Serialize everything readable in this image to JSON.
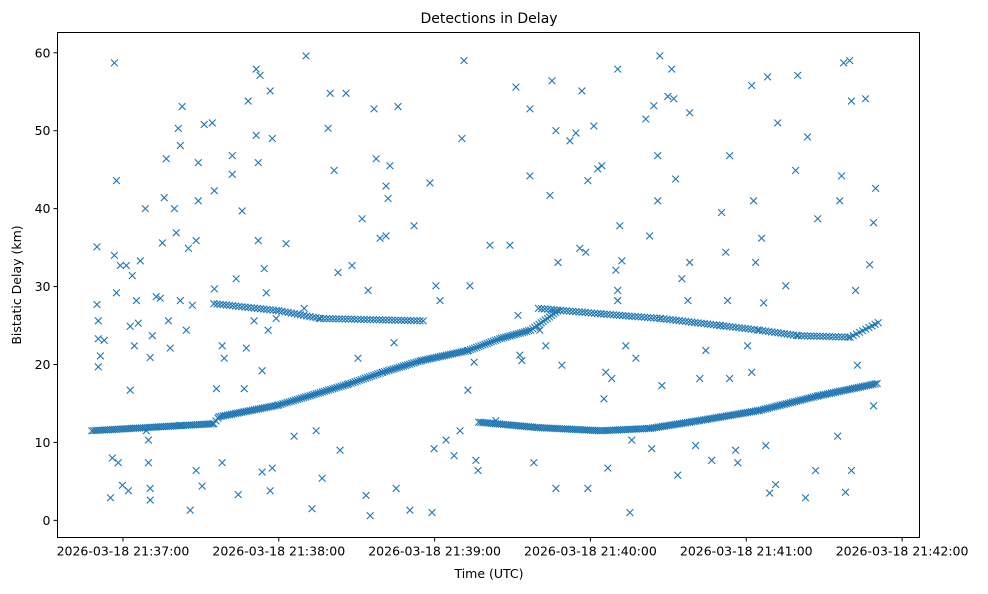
{
  "chart_data": {
    "type": "scatter",
    "title": "Detections in Delay",
    "xlabel": "Time (UTC)",
    "ylabel": "Bistatic Delay (km)",
    "x_units": "seconds after 2026-03-18 21:36:00 UTC",
    "xlim": [
      34.8,
      366.7
    ],
    "ylim": [
      -2.2,
      62.6
    ],
    "x_ticks": [
      {
        "value": 60,
        "label": "2026-03-18 21:37:00"
      },
      {
        "value": 120,
        "label": "2026-03-18 21:38:00"
      },
      {
        "value": 180,
        "label": "2026-03-18 21:39:00"
      },
      {
        "value": 240,
        "label": "2026-03-18 21:40:00"
      },
      {
        "value": 300,
        "label": "2026-03-18 21:41:00"
      },
      {
        "value": 360,
        "label": "2026-03-18 21:42:00"
      }
    ],
    "y_ticks": [
      {
        "value": 0,
        "label": "0"
      },
      {
        "value": 10,
        "label": "10"
      },
      {
        "value": 20,
        "label": "20"
      },
      {
        "value": 30,
        "label": "30"
      },
      {
        "value": 40,
        "label": "40"
      },
      {
        "value": 50,
        "label": "50"
      },
      {
        "value": 60,
        "label": "60"
      }
    ],
    "grid": false,
    "marker": "x",
    "color": "#1f77b4",
    "tracks": [
      {
        "name": "track-1",
        "sample_interval_s": 0.8,
        "knots": [
          [
            48,
            11.5
          ],
          [
            95,
            12.4
          ],
          [
            97,
            13.3
          ],
          [
            120,
            14.8
          ],
          [
            147,
            17.5
          ],
          [
            160,
            19.0
          ],
          [
            175,
            20.5
          ],
          [
            193,
            21.8
          ],
          [
            205,
            23.3
          ],
          [
            217,
            24.4
          ],
          [
            228,
            27.0
          ]
        ]
      },
      {
        "name": "track-2a",
        "sample_interval_s": 1.2,
        "knots": [
          [
            95,
            27.8
          ],
          [
            120,
            26.9
          ],
          [
            136,
            25.9
          ],
          [
            176,
            25.6
          ]
        ]
      },
      {
        "name": "track-2b",
        "sample_interval_s": 1.2,
        "knots": [
          [
            220,
            27.2
          ],
          [
            244,
            26.5
          ],
          [
            267,
            25.9
          ],
          [
            290,
            25.0
          ],
          [
            305,
            24.4
          ],
          [
            320,
            23.7
          ],
          [
            340,
            23.5
          ],
          [
            351,
            25.4
          ]
        ]
      },
      {
        "name": "track-3",
        "sample_interval_s": 0.8,
        "knots": [
          [
            197,
            12.6
          ],
          [
            220,
            11.9
          ],
          [
            244,
            11.5
          ],
          [
            263,
            11.8
          ],
          [
            282,
            12.8
          ],
          [
            305,
            14.1
          ],
          [
            328,
            16.0
          ],
          [
            351,
            17.6
          ]
        ]
      }
    ],
    "points": [
      [
        50,
        35.1
      ],
      [
        50,
        27.7
      ],
      [
        50.5,
        23.3
      ],
      [
        50.5,
        25.6
      ],
      [
        50.5,
        19.7
      ],
      [
        51.3,
        21.1
      ],
      [
        52.8,
        23.1
      ],
      [
        55.2,
        2.9
      ],
      [
        55.9,
        8.0
      ],
      [
        56.7,
        58.7
      ],
      [
        57.5,
        43.6
      ],
      [
        56.7,
        34.0
      ],
      [
        57.5,
        29.2
      ],
      [
        58.2,
        7.4
      ],
      [
        59,
        32.7
      ],
      [
        59.8,
        4.5
      ],
      [
        61.3,
        32.7
      ],
      [
        62.1,
        3.8
      ],
      [
        62.8,
        16.7
      ],
      [
        62.8,
        24.9
      ],
      [
        63.6,
        31.4
      ],
      [
        64.4,
        22.4
      ],
      [
        65.2,
        28.2
      ],
      [
        65.9,
        25.3
      ],
      [
        66.7,
        33.3
      ],
      [
        68.6,
        40.0
      ],
      [
        69,
        11.5
      ],
      [
        69.8,
        7.4
      ],
      [
        70.5,
        2.6
      ],
      [
        70.5,
        4.1
      ],
      [
        69.8,
        10.3
      ],
      [
        70.5,
        20.9
      ],
      [
        71.3,
        23.7
      ],
      [
        72.8,
        28.7
      ],
      [
        74.4,
        28.5
      ],
      [
        75.2,
        35.6
      ],
      [
        75.9,
        41.4
      ],
      [
        76.7,
        46.4
      ],
      [
        77.5,
        25.6
      ],
      [
        78.2,
        22.1
      ],
      [
        79.8,
        40.0
      ],
      [
        80.5,
        36.9
      ],
      [
        81.3,
        50.3
      ],
      [
        82.1,
        48.1
      ],
      [
        82.8,
        53.1
      ],
      [
        82.1,
        28.2
      ],
      [
        82.1,
        12.2
      ],
      [
        84.4,
        24.4
      ],
      [
        85.2,
        34.9
      ],
      [
        85.9,
        1.3
      ],
      [
        86.7,
        27.6
      ],
      [
        88.2,
        35.9
      ],
      [
        88.2,
        6.4
      ],
      [
        89,
        45.9
      ],
      [
        89,
        41.0
      ],
      [
        90.5,
        4.4
      ],
      [
        91.3,
        50.8
      ],
      [
        94.4,
        51.0
      ],
      [
        95.2,
        42.3
      ],
      [
        96,
        16.9
      ],
      [
        95.2,
        29.7
      ],
      [
        98.2,
        7.4
      ],
      [
        98.2,
        22.4
      ],
      [
        99,
        20.8
      ],
      [
        102.1,
        46.8
      ],
      [
        102.1,
        44.4
      ],
      [
        103.6,
        31.0
      ],
      [
        104.4,
        3.3
      ],
      [
        105.9,
        39.7
      ],
      [
        106.7,
        16.9
      ],
      [
        107.5,
        22.1
      ],
      [
        108.2,
        53.8
      ],
      [
        110.5,
        25.6
      ],
      [
        111.3,
        57.9
      ],
      [
        111.3,
        49.4
      ],
      [
        112.1,
        45.9
      ],
      [
        112.1,
        35.9
      ],
      [
        112.8,
        57.1
      ],
      [
        113.6,
        19.2
      ],
      [
        113.6,
        6.2
      ],
      [
        114.4,
        32.3
      ],
      [
        115.2,
        29.2
      ],
      [
        115.9,
        24.4
      ],
      [
        116.7,
        55.1
      ],
      [
        117.5,
        49.0
      ],
      [
        116.7,
        3.8
      ],
      [
        117.5,
        6.7
      ],
      [
        119,
        25.9
      ],
      [
        122.8,
        35.5
      ],
      [
        125.9,
        10.8
      ],
      [
        129.8,
        27.2
      ],
      [
        130.5,
        59.6
      ],
      [
        132.8,
        1.5
      ],
      [
        134.4,
        11.5
      ],
      [
        136.7,
        5.4
      ],
      [
        139,
        50.3
      ],
      [
        139.8,
        54.8
      ],
      [
        141.3,
        44.9
      ],
      [
        142.8,
        31.8
      ],
      [
        143.6,
        9.0
      ],
      [
        145.9,
        54.8
      ],
      [
        148.2,
        32.7
      ],
      [
        150.5,
        20.8
      ],
      [
        152.1,
        38.7
      ],
      [
        153.6,
        3.2
      ],
      [
        154.4,
        29.5
      ],
      [
        155.2,
        0.6
      ],
      [
        156.7,
        52.8
      ],
      [
        157.5,
        46.4
      ],
      [
        159,
        36.2
      ],
      [
        161.3,
        42.9
      ],
      [
        161.3,
        36.5
      ],
      [
        162.1,
        41.3
      ],
      [
        162.8,
        45.5
      ],
      [
        164.4,
        22.8
      ],
      [
        165.2,
        4.1
      ],
      [
        165.9,
        53.1
      ],
      [
        170.5,
        1.3
      ],
      [
        172.1,
        37.8
      ],
      [
        178.2,
        43.3
      ],
      [
        179,
        1.0
      ],
      [
        179.8,
        9.2
      ],
      [
        180.5,
        30.1
      ],
      [
        182.1,
        28.2
      ],
      [
        184.4,
        10.3
      ],
      [
        187.5,
        8.3
      ],
      [
        189.8,
        11.5
      ],
      [
        190.5,
        49.0
      ],
      [
        191.3,
        59.0
      ],
      [
        192.8,
        16.7
      ],
      [
        193.6,
        30.1
      ],
      [
        195.2,
        20.3
      ],
      [
        195.9,
        7.7
      ],
      [
        196.7,
        6.4
      ],
      [
        201.3,
        35.3
      ],
      [
        203.6,
        12.8
      ],
      [
        209,
        35.3
      ],
      [
        211.3,
        55.6
      ],
      [
        212.1,
        26.3
      ],
      [
        212.8,
        21.2
      ],
      [
        213.6,
        20.5
      ],
      [
        216.7,
        44.2
      ],
      [
        216.7,
        52.8
      ],
      [
        218.2,
        7.4
      ],
      [
        220.5,
        24.4
      ],
      [
        222.8,
        22.4
      ],
      [
        224.4,
        41.7
      ],
      [
        225.2,
        56.4
      ],
      [
        226.7,
        50.0
      ],
      [
        226.7,
        4.1
      ],
      [
        227.5,
        33.1
      ],
      [
        229,
        19.9
      ],
      [
        232.1,
        48.7
      ],
      [
        234.4,
        49.7
      ],
      [
        235.9,
        34.9
      ],
      [
        236.7,
        55.1
      ],
      [
        238.2,
        34.4
      ],
      [
        239,
        43.6
      ],
      [
        239,
        4.1
      ],
      [
        241.3,
        50.6
      ],
      [
        242.8,
        45.1
      ],
      [
        244.4,
        45.5
      ],
      [
        245.2,
        15.6
      ],
      [
        245.9,
        19.0
      ],
      [
        246.7,
        6.7
      ],
      [
        248.2,
        18.2
      ],
      [
        249.8,
        32.1
      ],
      [
        250.5,
        57.9
      ],
      [
        250.5,
        29.5
      ],
      [
        250.5,
        28.2
      ],
      [
        251.3,
        37.8
      ],
      [
        252.1,
        33.3
      ],
      [
        253.6,
        22.4
      ],
      [
        255.2,
        1.0
      ],
      [
        255.9,
        10.3
      ],
      [
        257.5,
        20.8
      ],
      [
        261.3,
        51.5
      ],
      [
        262.8,
        36.5
      ],
      [
        263.6,
        9.2
      ],
      [
        264.4,
        53.2
      ],
      [
        265.9,
        46.8
      ],
      [
        265.9,
        41.0
      ],
      [
        266.7,
        59.6
      ],
      [
        267.5,
        17.3
      ],
      [
        269.8,
        54.4
      ],
      [
        271.3,
        57.9
      ],
      [
        272.1,
        54.1
      ],
      [
        272.8,
        43.8
      ],
      [
        273.6,
        5.8
      ],
      [
        275.2,
        31.0
      ],
      [
        277.5,
        28.2
      ],
      [
        278.2,
        33.1
      ],
      [
        278.2,
        52.3
      ],
      [
        280.5,
        9.6
      ],
      [
        282.1,
        18.2
      ],
      [
        284.4,
        21.8
      ],
      [
        286.7,
        7.7
      ],
      [
        290.5,
        39.5
      ],
      [
        292.1,
        34.4
      ],
      [
        292.8,
        28.2
      ],
      [
        293.6,
        46.8
      ],
      [
        293.6,
        18.2
      ],
      [
        295.9,
        9.0
      ],
      [
        296.7,
        7.4
      ],
      [
        300.5,
        22.4
      ],
      [
        302.1,
        55.8
      ],
      [
        302.1,
        19.0
      ],
      [
        302.8,
        41.0
      ],
      [
        303.6,
        33.1
      ],
      [
        305.9,
        36.2
      ],
      [
        306.7,
        27.9
      ],
      [
        307.5,
        9.6
      ],
      [
        308.2,
        56.9
      ],
      [
        309,
        3.5
      ],
      [
        311.3,
        4.6
      ],
      [
        312.1,
        51.0
      ],
      [
        315.2,
        30.1
      ],
      [
        319,
        44.9
      ],
      [
        319.8,
        57.1
      ],
      [
        323.6,
        49.2
      ],
      [
        322.8,
        2.9
      ],
      [
        326.7,
        6.4
      ],
      [
        327.5,
        38.7
      ],
      [
        335.2,
        10.8
      ],
      [
        336,
        41.0
      ],
      [
        336.7,
        44.2
      ],
      [
        337.5,
        58.7
      ],
      [
        338.2,
        3.6
      ],
      [
        339.8,
        59.0
      ],
      [
        340.5,
        6.4
      ],
      [
        340.5,
        53.8
      ],
      [
        342.1,
        29.5
      ],
      [
        342.8,
        19.9
      ],
      [
        345.9,
        54.1
      ],
      [
        347.5,
        32.8
      ],
      [
        349,
        14.7
      ],
      [
        349,
        38.2
      ],
      [
        349.8,
        42.6
      ]
    ]
  }
}
